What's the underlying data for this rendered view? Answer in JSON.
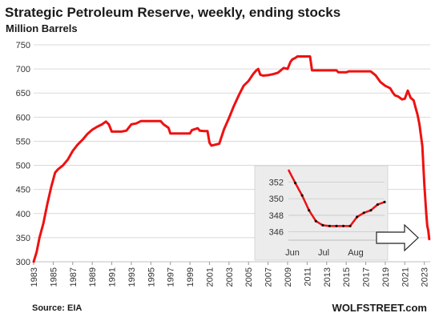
{
  "chart_data": [
    {
      "type": "line",
      "title": "Strategic Petroleum Reserve, weekly, ending stocks",
      "subtitle": "Million Barrels",
      "source": "Source: EIA",
      "brand": "WOLFSTREET.com",
      "ylim": [
        300,
        750
      ],
      "yticks": [
        "300",
        "350",
        "400",
        "450",
        "500",
        "550",
        "600",
        "650",
        "700",
        "750"
      ],
      "xlim": [
        1983,
        2023.6
      ],
      "xticks": [
        "1983",
        "1985",
        "1987",
        "1989",
        "1991",
        "1993",
        "1995",
        "1997",
        "1999",
        "2001",
        "2003",
        "2005",
        "2007",
        "2009",
        "2011",
        "2013",
        "2015",
        "2017",
        "2019",
        "2021",
        "2023"
      ],
      "grid": true,
      "line_color": "#ee1111",
      "series": [
        {
          "x": [
            1983.0,
            1983.3,
            1983.6,
            1984.0,
            1984.4,
            1984.8,
            1985.2,
            1985.5,
            1986.0,
            1986.5,
            1987.0,
            1987.5,
            1988.0,
            1988.5,
            1989.0,
            1989.5,
            1990.0,
            1990.4,
            1990.7,
            1991.0,
            1991.2,
            1992.0,
            1992.5,
            1993.0,
            1993.5,
            1994.0,
            1995.0,
            1996.0,
            1996.3,
            1996.8,
            1997.0,
            1998.0,
            1999.0,
            1999.2,
            1999.8,
            2000.0,
            2000.5,
            2000.8,
            2001.0,
            2001.2,
            2002.0,
            2002.5,
            2003.0,
            2003.5,
            2004.0,
            2004.5,
            2005.0,
            2005.5,
            2005.8,
            2006.0,
            2006.2,
            2006.5,
            2007.0,
            2007.5,
            2008.0,
            2008.3,
            2008.6,
            2009.0,
            2009.3,
            2009.5,
            2009.8,
            2010.0,
            2010.5,
            2011.0,
            2011.3,
            2011.5,
            2012.0,
            2013.0,
            2014.0,
            2014.2,
            2015.0,
            2015.3,
            2016.0,
            2017.0,
            2017.2,
            2017.5,
            2018.0,
            2018.5,
            2019.0,
            2019.5,
            2019.8,
            2020.0,
            2020.3,
            2020.5,
            2020.7,
            2021.0,
            2021.3,
            2021.6,
            2021.9,
            2022.1,
            2022.3,
            2022.5,
            2022.8,
            2023.0,
            2023.2,
            2023.3,
            2023.4,
            2023.5
          ],
          "y": [
            300,
            320,
            350,
            380,
            420,
            455,
            485,
            492,
            500,
            512,
            530,
            543,
            553,
            565,
            574,
            580,
            585,
            591,
            585,
            570,
            570,
            570,
            572,
            585,
            587,
            592,
            592,
            592,
            585,
            578,
            566,
            566,
            566,
            573,
            577,
            572,
            571,
            571,
            547,
            541,
            545,
            575,
            598,
            623,
            645,
            665,
            675,
            690,
            697,
            700,
            688,
            686,
            687,
            689,
            692,
            697,
            702,
            700,
            715,
            720,
            723,
            726,
            726,
            726,
            726,
            697,
            697,
            697,
            697,
            693,
            693,
            695,
            695,
            695,
            695,
            695,
            687,
            673,
            665,
            660,
            650,
            645,
            643,
            640,
            637,
            638,
            655,
            640,
            635,
            620,
            605,
            585,
            540,
            460,
            400,
            375,
            365,
            347
          ]
        }
      ]
    },
    {
      "type": "line",
      "title": "",
      "ylim": [
        345,
        353.5
      ],
      "yticks": [
        "346",
        "348",
        "350",
        "352"
      ],
      "xticks": [
        "Jun",
        "Jul",
        "Aug"
      ],
      "grid": true,
      "series": [
        {
          "x": [
            0,
            1,
            2,
            3,
            4,
            5,
            6,
            7,
            8,
            9,
            10,
            11,
            12,
            13,
            14
          ],
          "y": [
            353.5,
            351.9,
            350.4,
            348.6,
            347.3,
            346.8,
            346.7,
            346.7,
            346.7,
            346.7,
            347.8,
            348.3,
            348.6,
            349.3,
            349.6
          ]
        }
      ]
    }
  ]
}
